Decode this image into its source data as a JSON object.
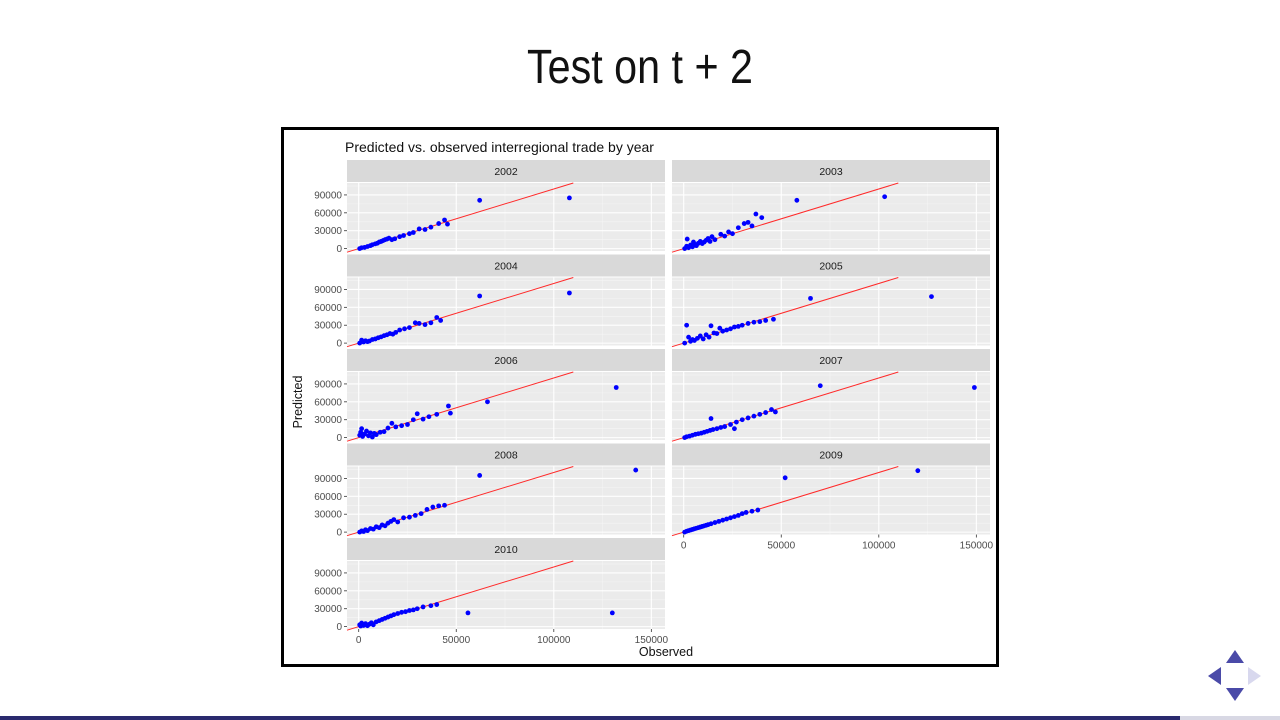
{
  "slide": {
    "title": "Test on t + 2"
  },
  "nav": {
    "up_icon": "triangle-up-icon",
    "down_icon": "triangle-down-icon",
    "left_icon": "triangle-left-icon",
    "right_icon": "triangle-right-icon"
  },
  "colors": {
    "point": "#0000ff",
    "fit_line": "#ff2a2a",
    "panel_bg": "#ebebeb",
    "strip_bg": "#d9d9d9",
    "accent": "#4a4aa8"
  },
  "chart_data": {
    "type": "scatter",
    "title": "Predicted vs. observed interregional trade by year",
    "xlabel": "Observed",
    "ylabel": "Predicted",
    "xlim": [
      -6000,
      157000
    ],
    "ylim": [
      -4000,
      110000
    ],
    "x_ticks": [
      0,
      50000,
      100000,
      150000
    ],
    "x_tick_labels": [
      "0",
      "50000",
      "100000",
      "150000"
    ],
    "y_ticks": [
      0,
      30000,
      60000,
      90000
    ],
    "y_tick_labels": [
      "0",
      "30000",
      "60000",
      "90000"
    ],
    "grid": true,
    "reference_line": {
      "slope": 1,
      "intercept": 0
    },
    "panels": [
      {
        "year": "2002",
        "points": [
          [
            500,
            0
          ],
          [
            1500,
            1500
          ],
          [
            3000,
            2000
          ],
          [
            4500,
            3500
          ],
          [
            6000,
            5000
          ],
          [
            7000,
            6500
          ],
          [
            8500,
            8000
          ],
          [
            9500,
            9000
          ],
          [
            10500,
            11000
          ],
          [
            11500,
            12000
          ],
          [
            12500,
            13500
          ],
          [
            13500,
            15000
          ],
          [
            14500,
            16000
          ],
          [
            15500,
            17500
          ],
          [
            17000,
            15000
          ],
          [
            18500,
            16500
          ],
          [
            21000,
            20000
          ],
          [
            23000,
            22000
          ],
          [
            26000,
            25000
          ],
          [
            28000,
            27000
          ],
          [
            31000,
            33000
          ],
          [
            34000,
            32000
          ],
          [
            37000,
            36000
          ],
          [
            41000,
            42000
          ],
          [
            44000,
            48000
          ],
          [
            45500,
            41000
          ],
          [
            62000,
            81000
          ],
          [
            108000,
            85000
          ]
        ]
      },
      {
        "year": "2003",
        "points": [
          [
            500,
            0
          ],
          [
            1500,
            4000
          ],
          [
            2500,
            1500
          ],
          [
            3500,
            6000
          ],
          [
            4500,
            3000
          ],
          [
            5500,
            7500
          ],
          [
            6500,
            5000
          ],
          [
            7500,
            9000
          ],
          [
            8500,
            12000
          ],
          [
            9500,
            8500
          ],
          [
            10500,
            11000
          ],
          [
            11500,
            14000
          ],
          [
            12500,
            17000
          ],
          [
            13500,
            12000
          ],
          [
            14500,
            20000
          ],
          [
            16000,
            15000
          ],
          [
            19000,
            24000
          ],
          [
            21000,
            21000
          ],
          [
            23000,
            28000
          ],
          [
            25000,
            25000
          ],
          [
            28000,
            35000
          ],
          [
            31000,
            42000
          ],
          [
            33000,
            44000
          ],
          [
            35000,
            38000
          ],
          [
            37000,
            58000
          ],
          [
            40000,
            52000
          ],
          [
            58000,
            81000
          ],
          [
            103000,
            87000
          ],
          [
            1800,
            16000
          ],
          [
            5000,
            11000
          ]
        ]
      },
      {
        "year": "2004",
        "points": [
          [
            500,
            0
          ],
          [
            1500,
            5000
          ],
          [
            2500,
            2000
          ],
          [
            3500,
            4000
          ],
          [
            4500,
            2500
          ],
          [
            5500,
            3500
          ],
          [
            7000,
            6000
          ],
          [
            8500,
            7000
          ],
          [
            10000,
            9000
          ],
          [
            11500,
            10500
          ],
          [
            13000,
            12500
          ],
          [
            14500,
            14000
          ],
          [
            16000,
            16000
          ],
          [
            17500,
            15000
          ],
          [
            19000,
            18000
          ],
          [
            21000,
            22000
          ],
          [
            23500,
            24000
          ],
          [
            26000,
            26000
          ],
          [
            29000,
            34000
          ],
          [
            31000,
            33000
          ],
          [
            34000,
            31000
          ],
          [
            37000,
            34000
          ],
          [
            40000,
            43000
          ],
          [
            42000,
            38000
          ],
          [
            62000,
            79000
          ],
          [
            108000,
            84000
          ]
        ]
      },
      {
        "year": "2005",
        "points": [
          [
            500,
            0
          ],
          [
            1500,
            30000
          ],
          [
            2500,
            10000
          ],
          [
            3500,
            3000
          ],
          [
            4500,
            6000
          ],
          [
            5500,
            4500
          ],
          [
            7000,
            8000
          ],
          [
            8500,
            12000
          ],
          [
            10000,
            7000
          ],
          [
            11500,
            14000
          ],
          [
            13000,
            10000
          ],
          [
            14000,
            29000
          ],
          [
            15500,
            17000
          ],
          [
            17000,
            16000
          ],
          [
            18500,
            25000
          ],
          [
            20000,
            20000
          ],
          [
            22000,
            22000
          ],
          [
            24000,
            24000
          ],
          [
            26000,
            27000
          ],
          [
            28000,
            28000
          ],
          [
            30000,
            30000
          ],
          [
            33000,
            33000
          ],
          [
            36000,
            35000
          ],
          [
            39000,
            36000
          ],
          [
            42000,
            38000
          ],
          [
            46000,
            40000
          ],
          [
            65000,
            75000
          ],
          [
            127000,
            78000
          ]
        ]
      },
      {
        "year": "2006",
        "points": [
          [
            500,
            4000
          ],
          [
            1000,
            9000
          ],
          [
            1500,
            15000
          ],
          [
            2000,
            2000
          ],
          [
            3000,
            6000
          ],
          [
            4000,
            11000
          ],
          [
            5000,
            3000
          ],
          [
            6000,
            8000
          ],
          [
            7000,
            1000
          ],
          [
            8000,
            7000
          ],
          [
            9000,
            5000
          ],
          [
            11000,
            9000
          ],
          [
            13000,
            10000
          ],
          [
            15000,
            16000
          ],
          [
            17000,
            24000
          ],
          [
            19000,
            18000
          ],
          [
            22000,
            20000
          ],
          [
            25000,
            22000
          ],
          [
            28000,
            30000
          ],
          [
            30000,
            40000
          ],
          [
            33000,
            31000
          ],
          [
            36000,
            35000
          ],
          [
            40000,
            39000
          ],
          [
            46000,
            53000
          ],
          [
            47000,
            41000
          ],
          [
            66000,
            60000
          ],
          [
            132000,
            84000
          ]
        ]
      },
      {
        "year": "2007",
        "points": [
          [
            500,
            0
          ],
          [
            1500,
            1500
          ],
          [
            3000,
            2500
          ],
          [
            4500,
            4000
          ],
          [
            6000,
            5500
          ],
          [
            7500,
            6500
          ],
          [
            9000,
            7500
          ],
          [
            10500,
            9000
          ],
          [
            12000,
            10500
          ],
          [
            13500,
            12000
          ],
          [
            15000,
            13500
          ],
          [
            17000,
            15000
          ],
          [
            19000,
            17000
          ],
          [
            21000,
            18500
          ],
          [
            14000,
            32000
          ],
          [
            24000,
            22000
          ],
          [
            26000,
            15000
          ],
          [
            27000,
            26000
          ],
          [
            30000,
            30000
          ],
          [
            33000,
            33000
          ],
          [
            36000,
            36000
          ],
          [
            39000,
            39000
          ],
          [
            42000,
            42000
          ],
          [
            45000,
            47000
          ],
          [
            47000,
            43000
          ],
          [
            70000,
            87000
          ],
          [
            149000,
            84000
          ]
        ]
      },
      {
        "year": "2008",
        "points": [
          [
            500,
            0
          ],
          [
            1500,
            2000
          ],
          [
            2500,
            1000
          ],
          [
            3500,
            4000
          ],
          [
            4500,
            2500
          ],
          [
            6000,
            6000
          ],
          [
            7500,
            5000
          ],
          [
            9000,
            9000
          ],
          [
            10500,
            7500
          ],
          [
            12000,
            12000
          ],
          [
            13500,
            10500
          ],
          [
            15000,
            15000
          ],
          [
            16500,
            18000
          ],
          [
            18000,
            21000
          ],
          [
            20000,
            17000
          ],
          [
            23000,
            24000
          ],
          [
            26000,
            25000
          ],
          [
            29000,
            28000
          ],
          [
            32000,
            31000
          ],
          [
            35000,
            38000
          ],
          [
            38000,
            42000
          ],
          [
            41000,
            44000
          ],
          [
            44000,
            45000
          ],
          [
            62000,
            95000
          ],
          [
            142000,
            104000
          ]
        ]
      },
      {
        "year": "2009",
        "points": [
          [
            500,
            0
          ],
          [
            1500,
            1500
          ],
          [
            2500,
            2500
          ],
          [
            3500,
            3500
          ],
          [
            4500,
            4500
          ],
          [
            5500,
            5500
          ],
          [
            6500,
            6500
          ],
          [
            7500,
            7500
          ],
          [
            8500,
            8500
          ],
          [
            9500,
            9500
          ],
          [
            10500,
            10500
          ],
          [
            11500,
            11500
          ],
          [
            12500,
            12500
          ],
          [
            14000,
            14000
          ],
          [
            16000,
            16000
          ],
          [
            18000,
            18000
          ],
          [
            20000,
            20000
          ],
          [
            22000,
            22000
          ],
          [
            24000,
            24000
          ],
          [
            26000,
            26000
          ],
          [
            28000,
            28000
          ],
          [
            30000,
            31000
          ],
          [
            32000,
            33000
          ],
          [
            35000,
            35000
          ],
          [
            38000,
            37000
          ],
          [
            52000,
            91000
          ],
          [
            120000,
            103000
          ]
        ]
      },
      {
        "year": "2010",
        "points": [
          [
            500,
            3000
          ],
          [
            1000,
            1000
          ],
          [
            1500,
            6000
          ],
          [
            2500,
            2000
          ],
          [
            3500,
            5000
          ],
          [
            4500,
            1500
          ],
          [
            5500,
            4000
          ],
          [
            6500,
            6500
          ],
          [
            7500,
            3000
          ],
          [
            9000,
            8000
          ],
          [
            10500,
            10000
          ],
          [
            12000,
            12000
          ],
          [
            13500,
            14000
          ],
          [
            15000,
            16000
          ],
          [
            16500,
            18000
          ],
          [
            18000,
            20000
          ],
          [
            20000,
            22000
          ],
          [
            22000,
            24000
          ],
          [
            24000,
            25000
          ],
          [
            26000,
            27000
          ],
          [
            28000,
            28000
          ],
          [
            30000,
            30000
          ],
          [
            33000,
            33000
          ],
          [
            37000,
            35000
          ],
          [
            40000,
            37000
          ],
          [
            56000,
            23000
          ],
          [
            130000,
            23000
          ]
        ]
      }
    ]
  }
}
